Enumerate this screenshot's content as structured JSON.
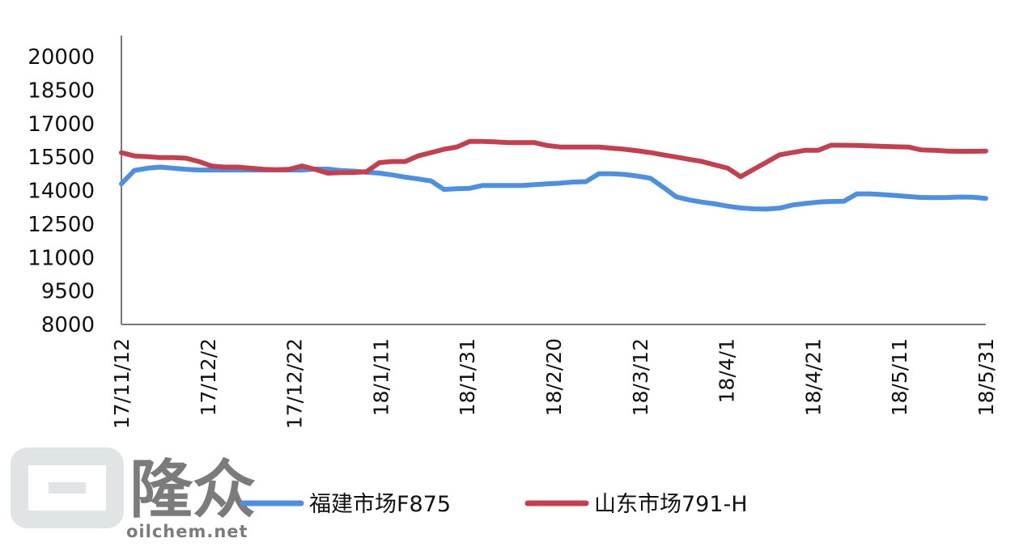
{
  "chart_data": {
    "type": "line",
    "ylim": [
      8000,
      20000
    ],
    "yticks": [
      "20000",
      "18500",
      "17000",
      "15500",
      "14000",
      "12500",
      "11000",
      "9500",
      "8000"
    ],
    "xticks": [
      "17/11/12",
      "17/12/2",
      "17/12/22",
      "18/1/11",
      "18/1/31",
      "18/2/20",
      "18/3/12",
      "18/4/1",
      "18/4/21",
      "18/5/11",
      "18/5/31"
    ],
    "x": [
      "17/11/12",
      "17/11/15",
      "17/11/18",
      "17/11/21",
      "17/11/24",
      "17/11/27",
      "17/11/30",
      "17/12/3",
      "17/12/6",
      "17/12/9",
      "17/12/12",
      "17/12/15",
      "17/12/18",
      "17/12/21",
      "17/12/24",
      "17/12/27",
      "17/12/30",
      "18/1/2",
      "18/1/5",
      "18/1/8",
      "18/1/11",
      "18/1/14",
      "18/1/17",
      "18/1/20",
      "18/1/23",
      "18/1/26",
      "18/1/29",
      "18/2/1",
      "18/2/4",
      "18/2/7",
      "18/2/10",
      "18/2/13",
      "18/2/16",
      "18/2/19",
      "18/2/22",
      "18/2/25",
      "18/2/28",
      "18/3/3",
      "18/3/6",
      "18/3/9",
      "18/3/12",
      "18/3/15",
      "18/3/18",
      "18/3/21",
      "18/3/24",
      "18/3/27",
      "18/3/30",
      "18/4/2",
      "18/4/5",
      "18/4/8",
      "18/4/11",
      "18/4/14",
      "18/4/17",
      "18/4/20",
      "18/4/23",
      "18/4/26",
      "18/4/29",
      "18/5/2",
      "18/5/5",
      "18/5/8",
      "18/5/11",
      "18/5/14",
      "18/5/17",
      "18/5/20",
      "18/5/23",
      "18/5/26",
      "18/5/29",
      "18/5/31"
    ],
    "series": [
      {
        "name": "福建市场F875",
        "color": "#4f8fdc",
        "values": [
          14300,
          14900,
          15000,
          15050,
          15000,
          14950,
          14920,
          14920,
          14920,
          14920,
          14920,
          14920,
          14920,
          14920,
          14920,
          14960,
          14960,
          14900,
          14870,
          14820,
          14780,
          14700,
          14600,
          14520,
          14430,
          14050,
          14080,
          14100,
          14230,
          14230,
          14230,
          14230,
          14260,
          14300,
          14330,
          14380,
          14400,
          14750,
          14750,
          14720,
          14650,
          14550,
          14150,
          13720,
          13580,
          13480,
          13400,
          13300,
          13220,
          13180,
          13170,
          13210,
          13350,
          13420,
          13480,
          13510,
          13520,
          13850,
          13850,
          13820,
          13780,
          13730,
          13690,
          13680,
          13690,
          13710,
          13700,
          13650
        ]
      },
      {
        "name": "山东市场791-H",
        "color": "#c0414f",
        "values": [
          15700,
          15550,
          15520,
          15480,
          15480,
          15450,
          15300,
          15100,
          15050,
          15050,
          15000,
          14950,
          14930,
          14950,
          15100,
          14950,
          14780,
          14800,
          14810,
          14850,
          15250,
          15300,
          15300,
          15550,
          15700,
          15850,
          15950,
          16200,
          16200,
          16180,
          16150,
          16150,
          16150,
          16020,
          15950,
          15950,
          15950,
          15950,
          15900,
          15850,
          15780,
          15700,
          15600,
          15500,
          15400,
          15300,
          15150,
          15000,
          14620,
          14950,
          15270,
          15600,
          15700,
          15800,
          15800,
          16030,
          16030,
          16020,
          16000,
          15980,
          15960,
          15950,
          15820,
          15800,
          15770,
          15760,
          15760,
          15770
        ]
      }
    ]
  },
  "watermark": {
    "brand": "隆众",
    "url": "oilchem.net"
  }
}
